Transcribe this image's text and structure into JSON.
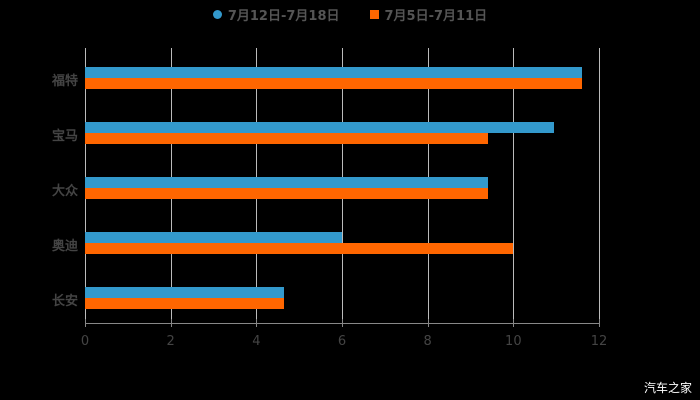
{
  "chart_data": {
    "type": "bar",
    "orientation": "horizontal",
    "title": "",
    "categories": [
      "福特",
      "宝马",
      "大众",
      "奥迪",
      "长安"
    ],
    "series": [
      {
        "name": "7月12日-7月18日",
        "color": "#3399cc",
        "values": [
          11.6,
          10.95,
          9.4,
          6.0,
          4.65
        ]
      },
      {
        "name": "7月5日-7月11日",
        "color": "#ff6600",
        "values": [
          11.6,
          9.4,
          9.4,
          10.0,
          4.65
        ]
      }
    ],
    "xlabel": "",
    "ylabel": "",
    "xlim": [
      0,
      12
    ],
    "xticks": [
      "0",
      "2",
      "4",
      "6",
      "8",
      "10",
      "12"
    ],
    "grid": true,
    "legend_position": "top"
  },
  "legend": {
    "s1": "7月12日-7月18日",
    "s2": "7月5日-7月11日"
  },
  "watermark": "汽车之家"
}
